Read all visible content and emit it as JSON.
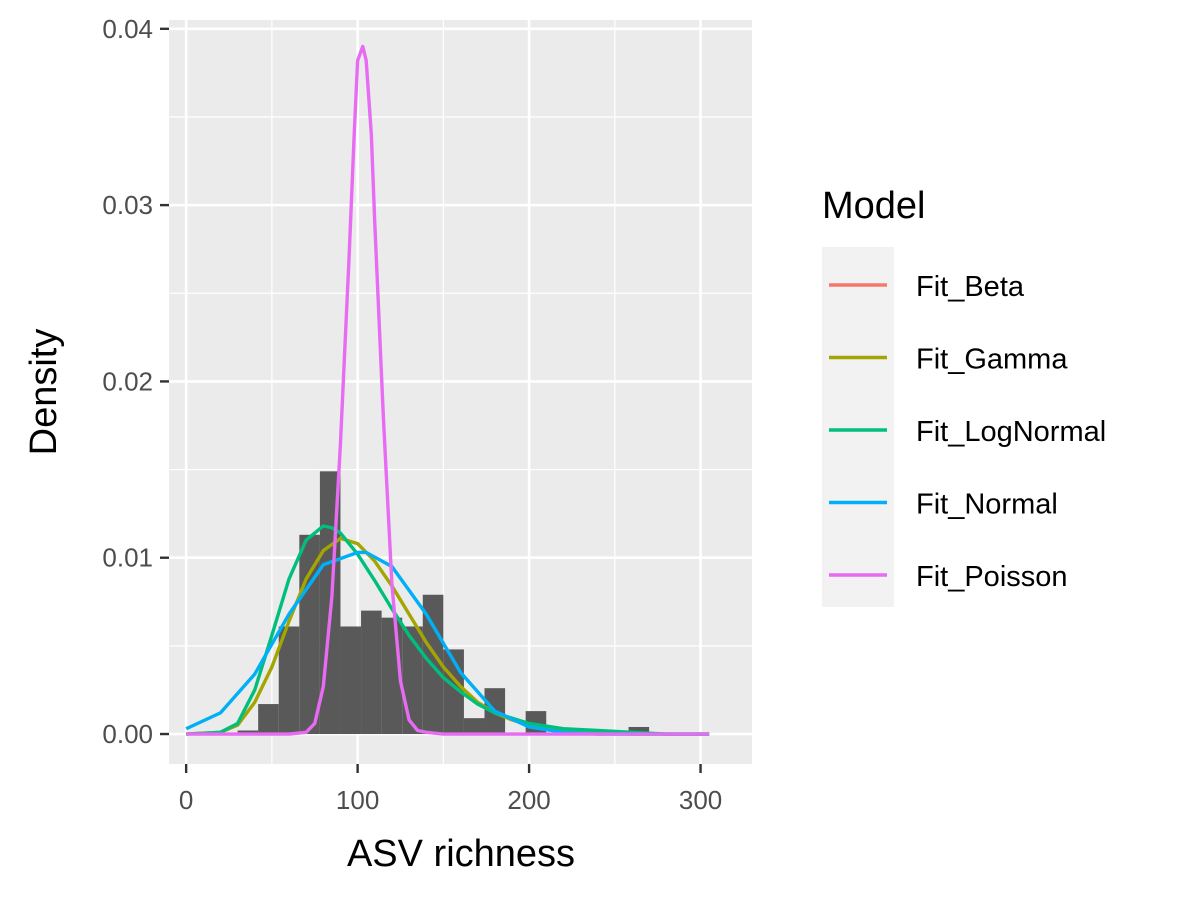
{
  "chart_data": {
    "type": "histogram",
    "xlabel": "ASV richness",
    "ylabel": "Density",
    "xlim": [
      -10,
      330
    ],
    "ylim": [
      -0.0017,
      0.0405
    ],
    "x_ticks": [
      0,
      100,
      200,
      300
    ],
    "y_ticks": [
      0.0,
      0.01,
      0.02,
      0.03,
      0.04
    ],
    "x_tick_labels": [
      "0",
      "100",
      "200",
      "300"
    ],
    "y_tick_labels": [
      "0.00",
      "0.01",
      "0.02",
      "0.03",
      "0.04"
    ],
    "grid": true,
    "legend_position": "right",
    "bar_color": "#595959",
    "histogram": {
      "bin_width": 12,
      "bins": [
        {
          "left": 30,
          "density": 0.0002
        },
        {
          "left": 42,
          "density": 0.0017
        },
        {
          "left": 54,
          "density": 0.0061
        },
        {
          "left": 66,
          "density": 0.0113
        },
        {
          "left": 78,
          "density": 0.0149
        },
        {
          "left": 90,
          "density": 0.0061
        },
        {
          "left": 102,
          "density": 0.007
        },
        {
          "left": 114,
          "density": 0.0066
        },
        {
          "left": 126,
          "density": 0.0061
        },
        {
          "left": 138,
          "density": 0.0079
        },
        {
          "left": 150,
          "density": 0.0048
        },
        {
          "left": 162,
          "density": 0.0009
        },
        {
          "left": 174,
          "density": 0.0026
        },
        {
          "left": 186,
          "density": 0.0
        },
        {
          "left": 198,
          "density": 0.0013
        },
        {
          "left": 258,
          "density": 0.0004
        }
      ]
    },
    "legend_title": "Model",
    "series": [
      {
        "name": "Fit_Beta",
        "color": "#F8766D",
        "x": [],
        "y": []
      },
      {
        "name": "Fit_Gamma",
        "color": "#A3A500",
        "x": [
          0,
          20,
          30,
          40,
          50,
          60,
          70,
          80,
          90,
          100,
          110,
          120,
          130,
          140,
          150,
          160,
          170,
          180,
          190,
          200,
          220,
          240,
          260,
          280,
          305
        ],
        "y": [
          0.0,
          0.0001,
          0.0005,
          0.0018,
          0.0038,
          0.0064,
          0.0088,
          0.0104,
          0.0111,
          0.0108,
          0.0098,
          0.0084,
          0.0068,
          0.0052,
          0.0038,
          0.0027,
          0.0018,
          0.0012,
          0.0008,
          0.0005,
          0.0002,
          0.0001,
          0.0,
          0.0,
          0.0
        ]
      },
      {
        "name": "Fit_LogNormal",
        "color": "#00BF7D",
        "x": [
          0,
          20,
          30,
          40,
          50,
          60,
          70,
          80,
          85,
          90,
          100,
          110,
          120,
          130,
          140,
          150,
          160,
          170,
          180,
          190,
          200,
          220,
          240,
          260,
          280,
          305
        ],
        "y": [
          0.0,
          0.0001,
          0.0006,
          0.0025,
          0.0056,
          0.0088,
          0.011,
          0.0118,
          0.0117,
          0.0114,
          0.0102,
          0.0087,
          0.0071,
          0.0056,
          0.0043,
          0.0032,
          0.0024,
          0.0017,
          0.0012,
          0.0009,
          0.0006,
          0.0003,
          0.0002,
          0.0001,
          0.0,
          0.0
        ]
      },
      {
        "name": "Fit_Normal",
        "color": "#00B0F6",
        "x": [
          0,
          20,
          40,
          60,
          80,
          100,
          105,
          120,
          140,
          160,
          180,
          200,
          220,
          240,
          260,
          280,
          305
        ],
        "y": [
          0.0003,
          0.0012,
          0.0034,
          0.0068,
          0.0096,
          0.0103,
          0.0103,
          0.0095,
          0.0068,
          0.0035,
          0.0013,
          0.0004,
          0.0001,
          0.0,
          0.0,
          0.0,
          0.0
        ]
      },
      {
        "name": "Fit_Poisson",
        "color": "#E76BF3",
        "x": [
          0,
          60,
          70,
          75,
          80,
          85,
          90,
          95,
          98,
          100,
          103,
          105,
          108,
          110,
          115,
          120,
          125,
          130,
          135,
          140,
          150,
          305
        ],
        "y": [
          0.0,
          0.0,
          0.0001,
          0.0006,
          0.0027,
          0.0078,
          0.0165,
          0.027,
          0.034,
          0.0382,
          0.039,
          0.0382,
          0.034,
          0.029,
          0.018,
          0.0085,
          0.003,
          0.0008,
          0.0002,
          0.0001,
          0.0,
          0.0
        ]
      }
    ]
  }
}
